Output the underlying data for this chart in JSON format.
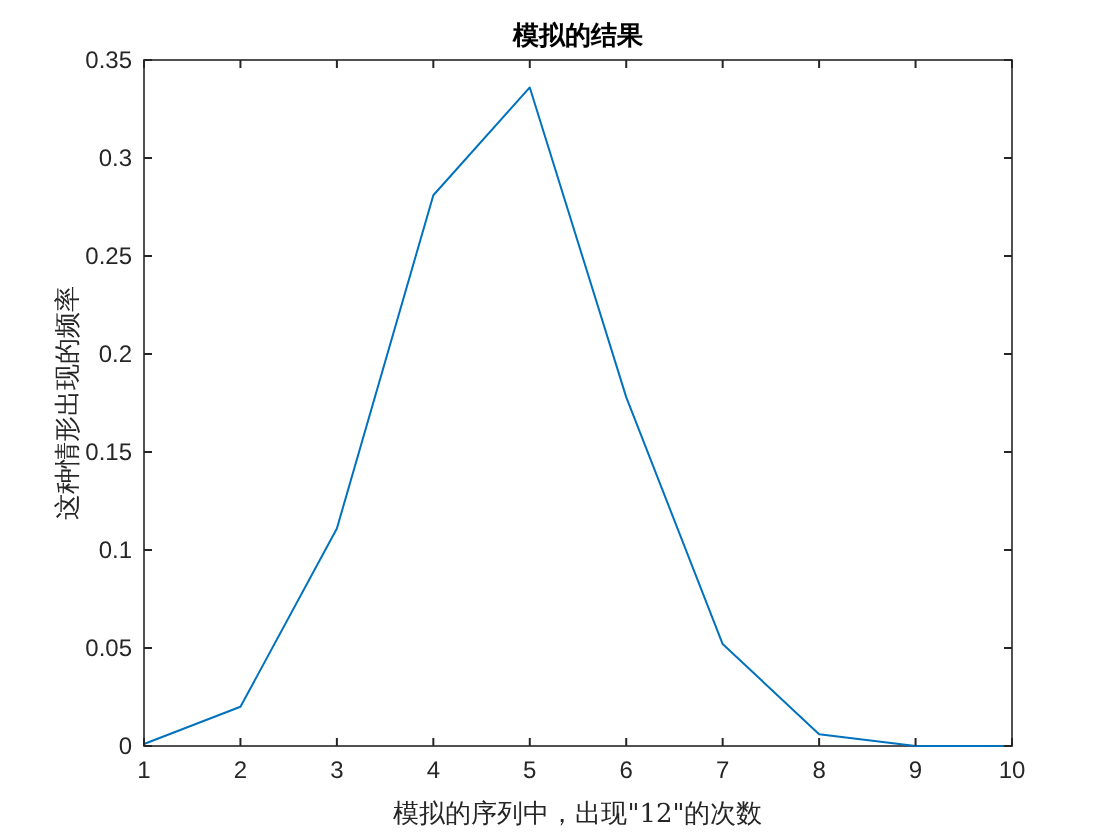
{
  "chart_data": {
    "type": "line",
    "title": "模拟的结果",
    "xlabel": "模拟的序列中，出现\"12\"的次数",
    "ylabel": "这种情形出现的频率",
    "x": [
      1,
      2,
      3,
      4,
      5,
      6,
      7,
      8,
      9,
      10
    ],
    "series": [
      {
        "color": "#0072bd",
        "values": [
          0.001,
          0.02,
          0.111,
          0.281,
          0.336,
          0.178,
          0.052,
          0.006,
          0,
          0
        ]
      }
    ],
    "xlim": [
      1,
      10
    ],
    "xticks": [
      1,
      2,
      3,
      4,
      5,
      6,
      7,
      8,
      9,
      10
    ],
    "ylim": [
      0,
      0.35
    ],
    "yticks": [
      0,
      0.05,
      0.1,
      0.15,
      0.2,
      0.25,
      0.3,
      0.35
    ],
    "grid": false,
    "marker": "none",
    "line_style": "solid"
  }
}
